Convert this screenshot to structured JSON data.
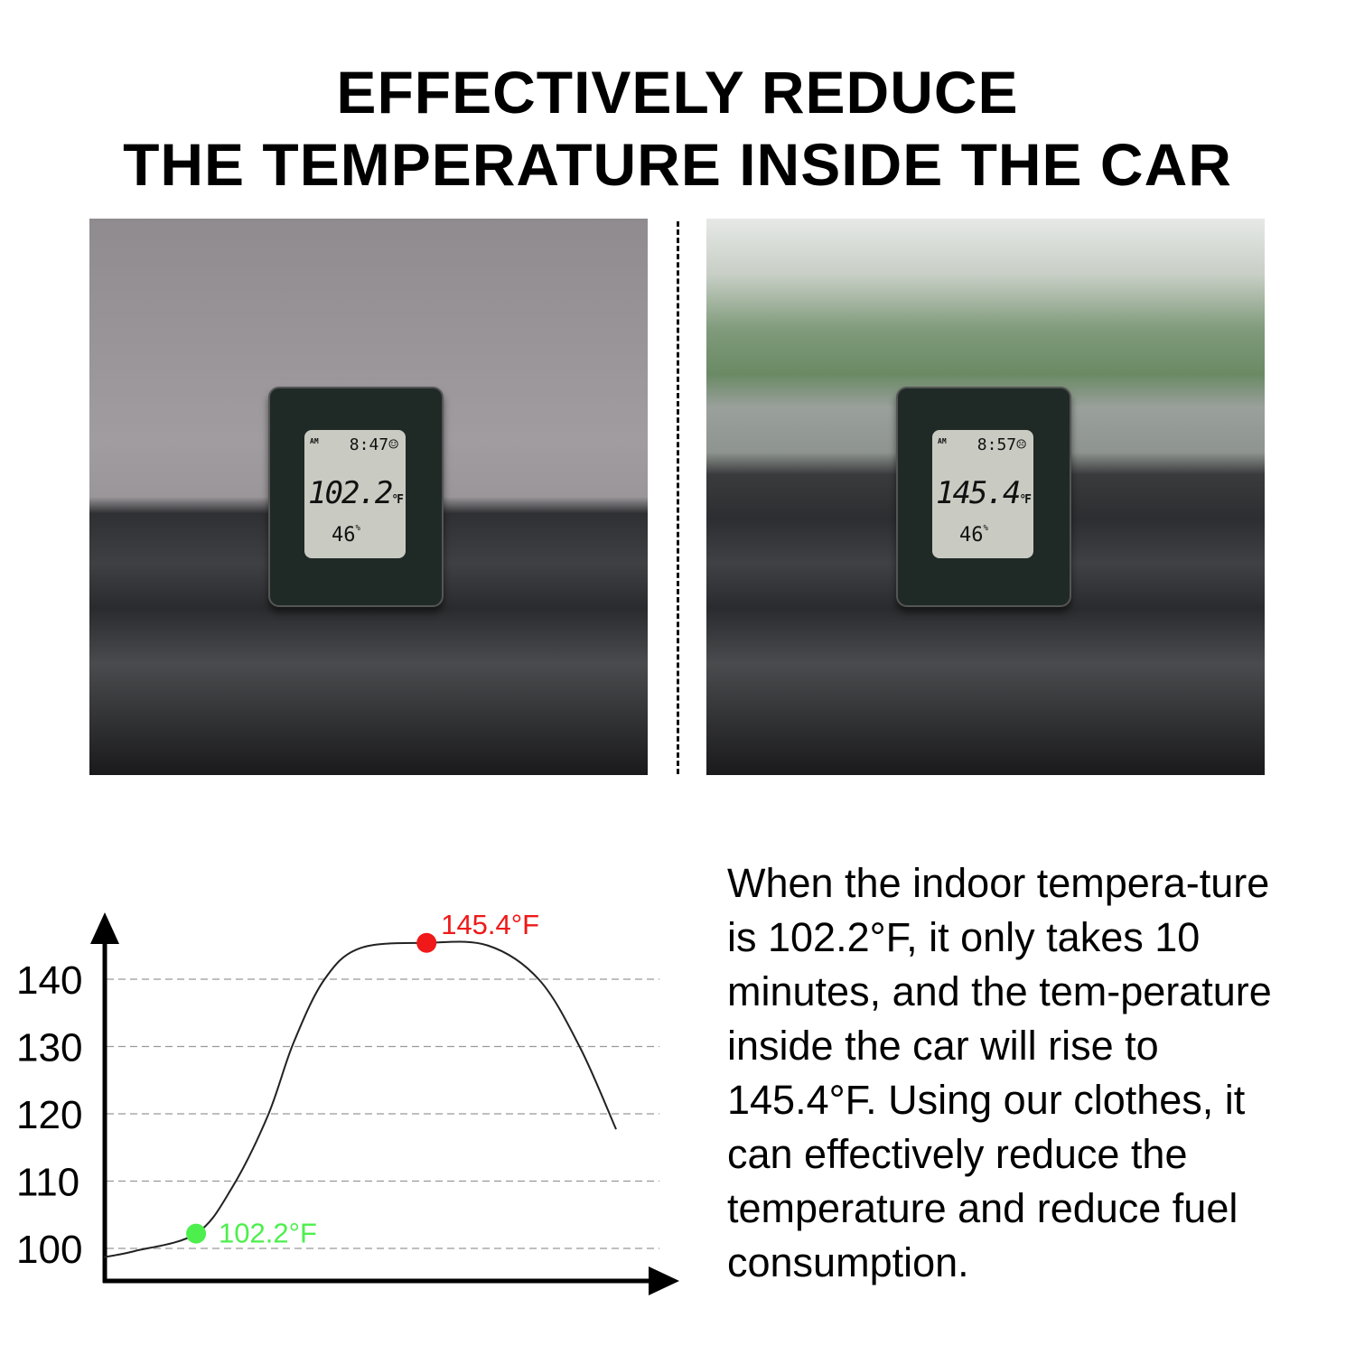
{
  "title": {
    "line1": "EFFECTIVELY REDUCE",
    "line2": "THE TEMPERATURE INSIDE THE CAR"
  },
  "photos": [
    {
      "am": "AM",
      "time": "8:47",
      "face": "☺",
      "temperature": "102.2",
      "unit": "°F",
      "humidity": "46",
      "humidity_unit": "%"
    },
    {
      "am": "AM",
      "time": "8:57",
      "face": "☹",
      "temperature": "145.4",
      "unit": "°F",
      "humidity": "46",
      "humidity_unit": "%"
    }
  ],
  "description": "When the indoor tempera-ture is 102.2°F, it only takes 10 minutes, and the tem-perature inside the car will rise to 145.4°F. Using our clothes, it can effectively reduce the temperature and reduce fuel consumption.",
  "chart_data": {
    "type": "line",
    "title": "",
    "xlabel": "",
    "ylabel": "",
    "yticks": [
      "100",
      "110",
      "120",
      "130",
      "140"
    ],
    "ylim": [
      96,
      152
    ],
    "grid": "horizontal dashed",
    "x": [
      0,
      0.6,
      1.8,
      2.5,
      3.2,
      3.7,
      4.3,
      5.0,
      6.3,
      7.5,
      8.5,
      9.3,
      10
    ],
    "y": [
      98.7,
      99.6,
      102.2,
      109.0,
      119.7,
      130.5,
      139.9,
      144.6,
      145.4,
      145.0,
      139.9,
      129.8,
      117.7
    ],
    "annotations": [
      {
        "x": 1.8,
        "y": 102.2,
        "label": "102.2°F",
        "color": "#4cef4c"
      },
      {
        "x": 6.3,
        "y": 145.4,
        "label": "145.4°F",
        "color": "#f01818"
      }
    ],
    "line_color": "#222222"
  }
}
